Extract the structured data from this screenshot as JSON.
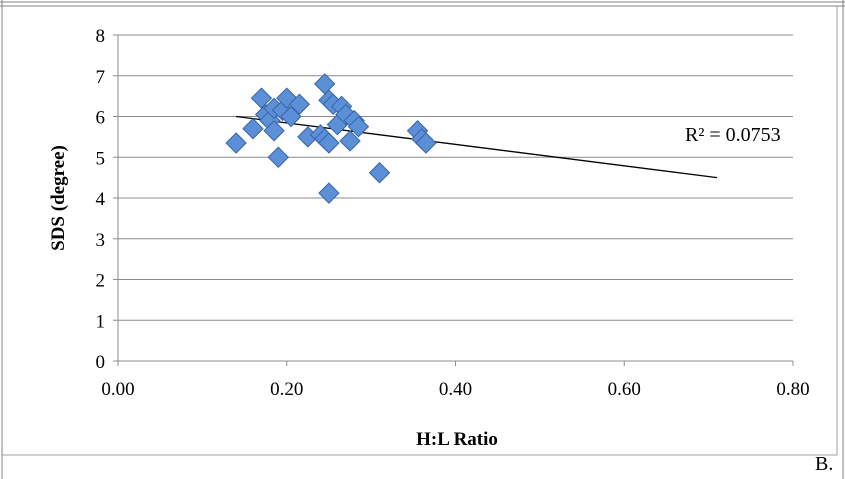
{
  "chart_data": {
    "type": "scatter",
    "title": "",
    "xlabel": "H:L Ratio",
    "ylabel": "SDS (degree)",
    "xlim": [
      0,
      0.8
    ],
    "ylim": [
      0,
      8
    ],
    "x_ticks": [
      "0.00",
      "0.20",
      "0.40",
      "0.60",
      "0.80"
    ],
    "y_ticks": [
      "0",
      "1",
      "2",
      "3",
      "4",
      "5",
      "6",
      "7",
      "8"
    ],
    "grid": "horizontal",
    "marker": "diamond",
    "marker_color": "#5b8fd6",
    "points": [
      {
        "x": 0.14,
        "y": 5.35
      },
      {
        "x": 0.16,
        "y": 5.7
      },
      {
        "x": 0.17,
        "y": 6.45
      },
      {
        "x": 0.175,
        "y": 6.05
      },
      {
        "x": 0.18,
        "y": 5.9
      },
      {
        "x": 0.185,
        "y": 6.2
      },
      {
        "x": 0.185,
        "y": 5.65
      },
      {
        "x": 0.19,
        "y": 5.0
      },
      {
        "x": 0.195,
        "y": 6.15
      },
      {
        "x": 0.2,
        "y": 6.45
      },
      {
        "x": 0.205,
        "y": 6.0
      },
      {
        "x": 0.215,
        "y": 6.3
      },
      {
        "x": 0.225,
        "y": 5.5
      },
      {
        "x": 0.24,
        "y": 5.55
      },
      {
        "x": 0.245,
        "y": 6.8
      },
      {
        "x": 0.245,
        "y": 5.45
      },
      {
        "x": 0.25,
        "y": 4.12
      },
      {
        "x": 0.25,
        "y": 5.35
      },
      {
        "x": 0.25,
        "y": 6.4
      },
      {
        "x": 0.255,
        "y": 6.3
      },
      {
        "x": 0.26,
        "y": 5.8
      },
      {
        "x": 0.265,
        "y": 6.25
      },
      {
        "x": 0.27,
        "y": 6.05
      },
      {
        "x": 0.275,
        "y": 5.4
      },
      {
        "x": 0.28,
        "y": 5.9
      },
      {
        "x": 0.285,
        "y": 5.75
      },
      {
        "x": 0.31,
        "y": 4.62
      },
      {
        "x": 0.355,
        "y": 5.65
      },
      {
        "x": 0.36,
        "y": 5.45
      },
      {
        "x": 0.365,
        "y": 5.35
      }
    ],
    "trendline": {
      "x": [
        0.14,
        0.71
      ],
      "y": [
        6.0,
        4.5
      ],
      "color": "#000000"
    },
    "annotation": "R² = 0.0753"
  },
  "footer_label": "B."
}
